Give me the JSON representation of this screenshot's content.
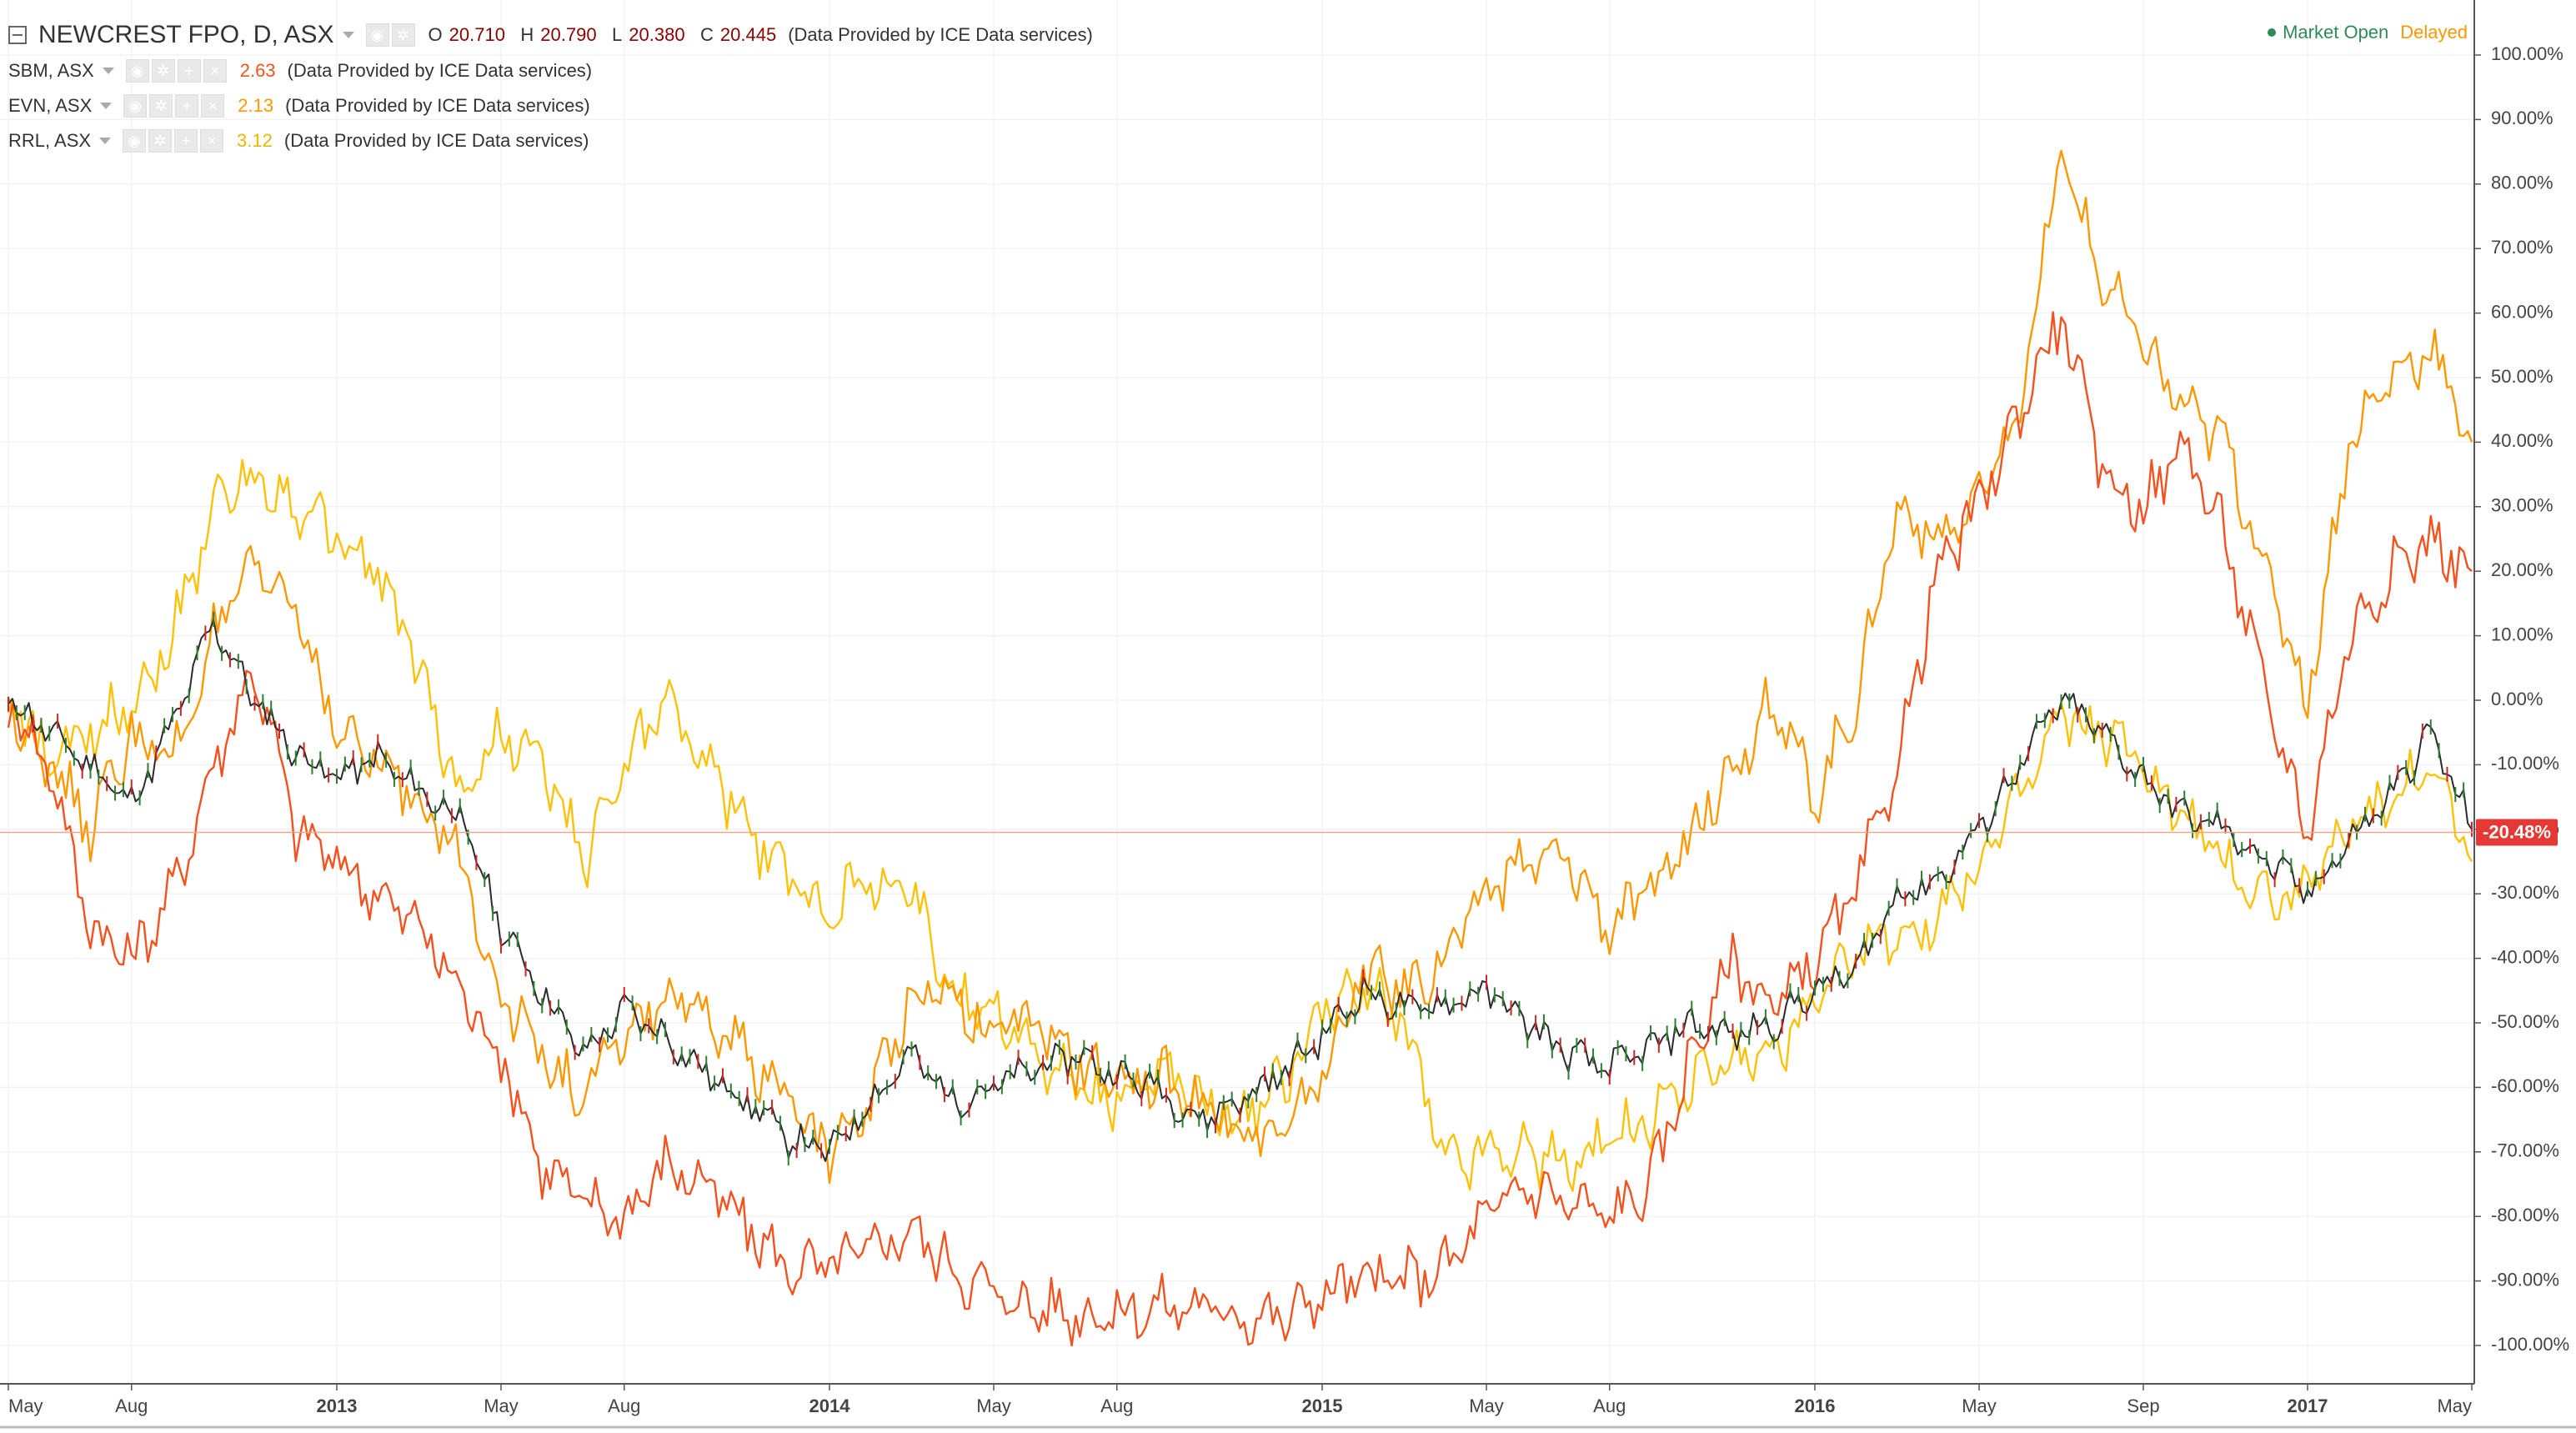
{
  "chart_data": {
    "type": "line",
    "title": "NEWCREST FPO, D, ASX",
    "main": {
      "symbol": "NEWCREST FPO, D, ASX",
      "ohlc": [
        {
          "label": "O",
          "value": "20.710"
        },
        {
          "label": "H",
          "value": "20.790"
        },
        {
          "label": "L",
          "value": "20.380"
        },
        {
          "label": "C",
          "value": "20.445"
        }
      ],
      "provider": "(Data Provided by ICE Data services)",
      "current_pct_label": "-20.48%",
      "current_pct": -20.48
    },
    "status": {
      "open": "Market Open",
      "delayed": "Delayed"
    },
    "compare": [
      {
        "symbol": "SBM, ASX",
        "value": "2.63",
        "provider": "(Data Provided by ICE Data services)",
        "color": "#f4511e"
      },
      {
        "symbol": "EVN, ASX",
        "value": "2.13",
        "provider": "(Data Provided by ICE Data services)",
        "color": "#ff9800"
      },
      {
        "symbol": "RRL, ASX",
        "value": "3.12",
        "provider": "(Data Provided by ICE Data services)",
        "color": "#ffc107"
      }
    ],
    "ylim": [
      -100,
      100
    ],
    "ylabel_ticks": [
      "100.00%",
      "90.00%",
      "80.00%",
      "70.00%",
      "60.00%",
      "50.00%",
      "40.00%",
      "30.00%",
      "20.00%",
      "10.00%",
      "0.00%",
      "-10.00%",
      "-20.00%",
      "-30.00%",
      "-40.00%",
      "-50.00%",
      "-60.00%",
      "-70.00%",
      "-80.00%",
      "-90.00%",
      "-100.00%"
    ],
    "xlim": [
      0,
      60
    ],
    "x_ticks": [
      {
        "label": "May",
        "x": 0,
        "bold": false
      },
      {
        "label": "Aug",
        "x": 3,
        "bold": false
      },
      {
        "label": "2013",
        "x": 8,
        "bold": true
      },
      {
        "label": "May",
        "x": 12,
        "bold": false
      },
      {
        "label": "Aug",
        "x": 15,
        "bold": false
      },
      {
        "label": "2014",
        "x": 20,
        "bold": true
      },
      {
        "label": "May",
        "x": 24,
        "bold": false
      },
      {
        "label": "Aug",
        "x": 27,
        "bold": false
      },
      {
        "label": "2015",
        "x": 32,
        "bold": true
      },
      {
        "label": "May",
        "x": 36,
        "bold": false
      },
      {
        "label": "Aug",
        "x": 39,
        "bold": false
      },
      {
        "label": "2016",
        "x": 44,
        "bold": true
      },
      {
        "label": "May",
        "x": 48,
        "bold": false
      },
      {
        "label": "Sep",
        "x": 52,
        "bold": false
      },
      {
        "label": "2017",
        "x": 56,
        "bold": true
      },
      {
        "label": "May",
        "x": 60,
        "bold": false
      }
    ],
    "series": [
      {
        "name": "NEWCREST FPO",
        "color": "#2b2b2b",
        "x": [
          0,
          1,
          2,
          3,
          4,
          5,
          6,
          7,
          8,
          9,
          10,
          11,
          12,
          13,
          14,
          15,
          16,
          17,
          18,
          19,
          20,
          21,
          22,
          23,
          24,
          25,
          26,
          27,
          28,
          29,
          30,
          31,
          32,
          33,
          34,
          35,
          36,
          37,
          38,
          39,
          40,
          41,
          42,
          43,
          44,
          45,
          46,
          47,
          48,
          49,
          50,
          51,
          52,
          53,
          54,
          55,
          56,
          57,
          58,
          59,
          60
        ],
        "values": [
          0,
          -5,
          -10,
          -16,
          -4,
          12,
          0,
          -8,
          -12,
          -9,
          -14,
          -18,
          -35,
          -45,
          -55,
          -48,
          -52,
          -58,
          -62,
          -68,
          -70,
          -62,
          -55,
          -62,
          -60,
          -57,
          -55,
          -58,
          -60,
          -65,
          -62,
          -58,
          -52,
          -45,
          -48,
          -47,
          -45,
          -50,
          -55,
          -57,
          -54,
          -50,
          -52,
          -50,
          -45,
          -42,
          -30,
          -28,
          -20,
          -10,
          0,
          -5,
          -12,
          -18,
          -20,
          -25,
          -30,
          -22,
          -15,
          -5,
          -20
        ]
      },
      {
        "name": "SBM, ASX",
        "color": "#f4511e",
        "x": [
          0,
          1,
          2,
          3,
          4,
          5,
          6,
          7,
          8,
          9,
          10,
          11,
          12,
          13,
          14,
          15,
          16,
          17,
          18,
          19,
          20,
          21,
          22,
          23,
          24,
          25,
          26,
          27,
          28,
          29,
          30,
          31,
          32,
          33,
          34,
          35,
          36,
          37,
          38,
          39,
          40,
          41,
          42,
          43,
          44,
          45,
          46,
          47,
          48,
          49,
          50,
          51,
          52,
          53,
          54,
          55,
          56,
          57,
          58,
          59,
          60
        ],
        "values": [
          0,
          -10,
          -35,
          -40,
          -30,
          -10,
          5,
          -20,
          -25,
          -30,
          -35,
          -45,
          -55,
          -72,
          -78,
          -80,
          -72,
          -75,
          -82,
          -88,
          -88,
          -85,
          -82,
          -88,
          -92,
          -94,
          -95,
          -95,
          -94,
          -94,
          -95,
          -96,
          -92,
          -90,
          -90,
          -88,
          -80,
          -75,
          -78,
          -80,
          -75,
          -55,
          -40,
          -48,
          -40,
          -30,
          -10,
          20,
          30,
          45,
          60,
          35,
          30,
          40,
          25,
          0,
          -20,
          10,
          20,
          25,
          20
        ]
      },
      {
        "name": "EVN, ASX",
        "color": "#ff9800",
        "x": [
          0,
          1,
          2,
          3,
          4,
          5,
          6,
          7,
          8,
          9,
          10,
          11,
          12,
          13,
          14,
          15,
          16,
          17,
          18,
          19,
          20,
          21,
          22,
          23,
          24,
          25,
          26,
          27,
          28,
          29,
          30,
          31,
          32,
          33,
          34,
          35,
          36,
          37,
          38,
          39,
          40,
          41,
          42,
          43,
          44,
          45,
          46,
          47,
          48,
          49,
          50,
          51,
          52,
          53,
          54,
          55,
          56,
          57,
          58,
          59,
          60
        ],
        "values": [
          0,
          -10,
          -20,
          -5,
          -10,
          10,
          20,
          15,
          -5,
          -10,
          -15,
          -25,
          -45,
          -55,
          -62,
          -52,
          -46,
          -50,
          -55,
          -62,
          -70,
          -62,
          -45,
          -45,
          -52,
          -50,
          -56,
          -60,
          -58,
          -62,
          -66,
          -68,
          -58,
          -42,
          -45,
          -40,
          -30,
          -25,
          -25,
          -35,
          -30,
          -20,
          -10,
          0,
          -15,
          0,
          30,
          25,
          30,
          45,
          85,
          65,
          55,
          45,
          40,
          20,
          0,
          40,
          50,
          55,
          40
        ]
      },
      {
        "name": "RRL, ASX",
        "color": "#ffc107",
        "x": [
          0,
          1,
          2,
          3,
          4,
          5,
          6,
          7,
          8,
          9,
          10,
          11,
          12,
          13,
          14,
          15,
          16,
          17,
          18,
          19,
          20,
          21,
          22,
          23,
          24,
          25,
          26,
          27,
          28,
          29,
          30,
          31,
          32,
          33,
          34,
          35,
          36,
          37,
          38,
          39,
          40,
          41,
          42,
          43,
          44,
          45,
          46,
          47,
          48,
          49,
          50,
          51,
          52,
          53,
          54,
          55,
          56,
          57,
          58,
          59,
          60
        ],
        "values": [
          0,
          -10,
          -5,
          0,
          10,
          30,
          35,
          30,
          25,
          20,
          5,
          -15,
          -5,
          -10,
          -25,
          -10,
          0,
          -10,
          -20,
          -28,
          -32,
          -28,
          -30,
          -45,
          -48,
          -55,
          -60,
          -62,
          -58,
          -62,
          -65,
          -60,
          -48,
          -45,
          -50,
          -72,
          -70,
          -70,
          -72,
          -68,
          -65,
          -60,
          -55,
          -55,
          -48,
          -40,
          -35,
          -35,
          -25,
          -15,
          -2,
          -5,
          -10,
          -18,
          -25,
          -30,
          -30,
          -20,
          -15,
          -10,
          -25
        ]
      }
    ]
  }
}
